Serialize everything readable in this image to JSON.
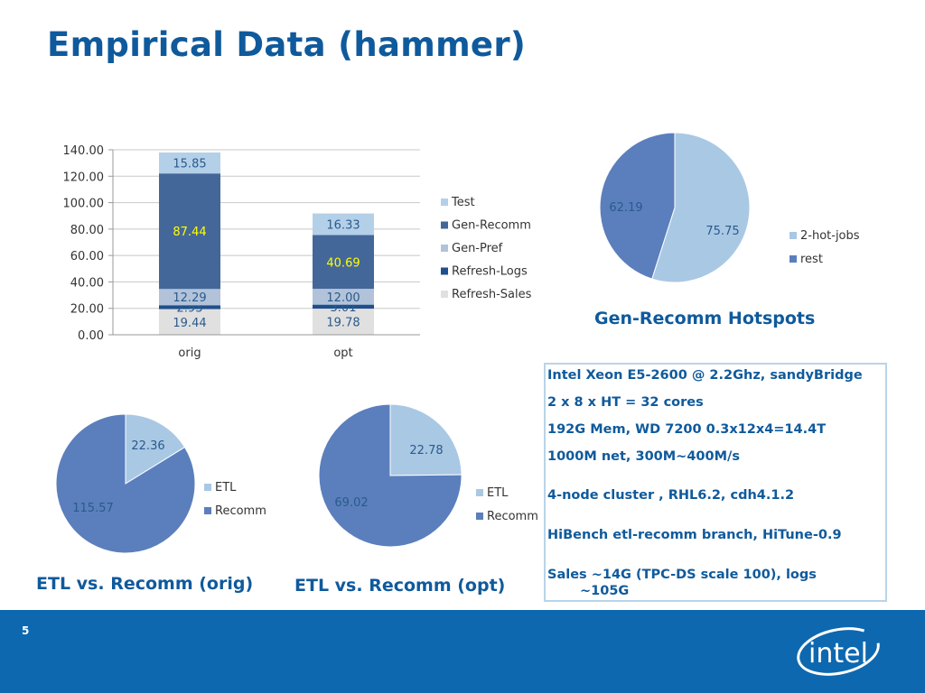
{
  "slide": {
    "title": "Empirical Data (hammer)",
    "page_number": "5",
    "logo_text": "intel"
  },
  "colors": {
    "accent": "#0f5a9c",
    "test": "#b4d0e8",
    "gen_recomm": "#44679a",
    "gen_pref": "#b2c3d9",
    "refresh_logs": "#1f4f8c",
    "refresh_sales": "#e0e0e0",
    "pie_light": "#a9c8e4",
    "pie_dark": "#5b7fbc",
    "footer": "#0d68b0"
  },
  "chart_data": [
    {
      "type": "bar",
      "stacked": true,
      "categories": [
        "orig",
        "opt"
      ],
      "series": [
        {
          "name": "Refresh-Sales",
          "values": [
            19.44,
            19.78
          ]
        },
        {
          "name": "Refresh-Logs",
          "values": [
            2.93,
            3.01
          ]
        },
        {
          "name": "Gen-Pref",
          "values": [
            12.29,
            12.0
          ]
        },
        {
          "name": "Gen-Recomm",
          "values": [
            87.44,
            40.69
          ]
        },
        {
          "name": "Test",
          "values": [
            15.85,
            16.33
          ]
        }
      ],
      "legend_order": [
        "Test",
        "Gen-Recomm",
        "Gen-Pref",
        "Refresh-Logs",
        "Refresh-Sales"
      ],
      "ylim": [
        0,
        140
      ],
      "yticks": [
        "0.00",
        "20.00",
        "40.00",
        "60.00",
        "80.00",
        "100.00",
        "120.00",
        "140.00"
      ],
      "grid": true,
      "legend": "right"
    },
    {
      "type": "pie",
      "title": "Gen-Recomm Hotspots",
      "labels": [
        "2-hot-jobs",
        "rest"
      ],
      "values": [
        75.75,
        62.19
      ],
      "legend": "right"
    },
    {
      "type": "pie",
      "title": "ETL vs. Recomm (orig)",
      "labels": [
        "ETL",
        "Recomm"
      ],
      "values": [
        22.36,
        115.57
      ],
      "legend": "right"
    },
    {
      "type": "pie",
      "title": "ETL vs. Recomm (opt)",
      "labels": [
        "ETL",
        "Recomm"
      ],
      "values": [
        22.78,
        69.02
      ],
      "legend": "right"
    }
  ],
  "info": {
    "lines": [
      "Intel Xeon E5-2600 @ 2.2Ghz, sandyBridge",
      "2 x 8 x HT = 32 cores",
      "192G Mem, WD 7200 0.3x12x4=14.4T",
      "1000M net, 300M~400M/s",
      "4-node cluster , RHL6.2, cdh4.1.2",
      "HiBench etl-recomm branch, HiTune-0.9",
      "Sales ~14G (TPC-DS scale 100), logs",
      "~105G"
    ]
  }
}
